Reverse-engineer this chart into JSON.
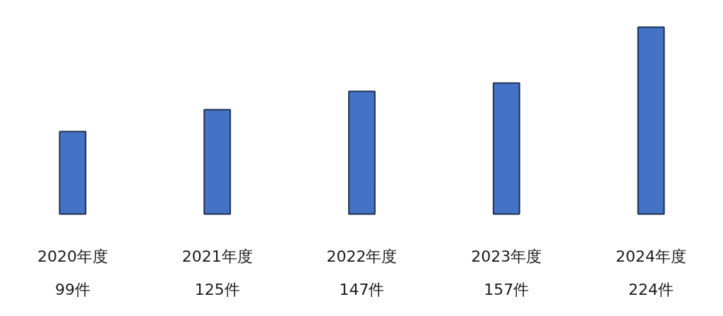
{
  "chart_data": {
    "type": "bar",
    "categories": [
      "2020年度",
      "2021年度",
      "2022年度",
      "2023年度",
      "2024年度"
    ],
    "values": [
      99,
      125,
      147,
      157,
      224
    ],
    "value_labels": [
      "99件",
      "125件",
      "147件",
      "157件",
      "224件"
    ],
    "color": "#4472c4"
  }
}
